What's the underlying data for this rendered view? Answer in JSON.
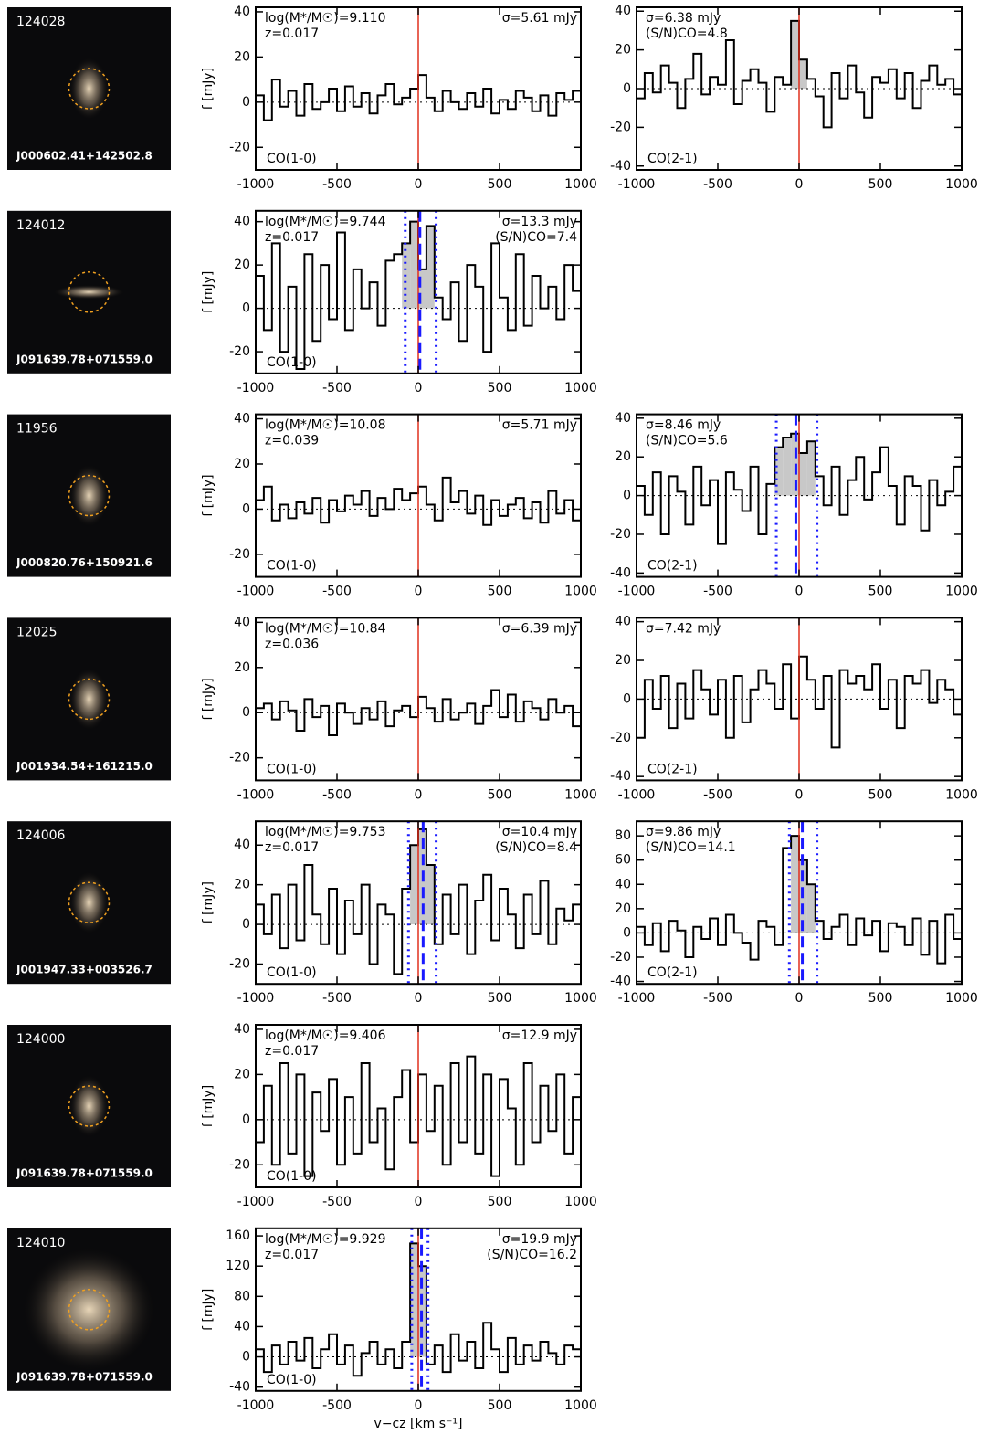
{
  "galaxies": [
    {
      "id": "124028",
      "name": "J000602.41+142502.8"
    },
    {
      "id": "124012",
      "name": "J091639.78+071559.0"
    },
    {
      "id": "11956",
      "name": "J000820.76+150921.6"
    },
    {
      "id": "12025",
      "name": "J001934.54+161215.0"
    },
    {
      "id": "124006",
      "name": "J001947.33+003526.7"
    },
    {
      "id": "124000",
      "name": "J091639.78+071559.0"
    },
    {
      "id": "124010",
      "name": "J091639.78+071559.0"
    }
  ],
  "colors": {
    "spectrum": "#000000",
    "systemic": "#e0301e",
    "fit": "#1a1aff",
    "shade": "#c8c8c8",
    "label": "#999999"
  },
  "chart_data": [
    {
      "type": "step",
      "ylabel": "f [mJy]",
      "left_text": [
        "log(M*/M☉)=9.110",
        "z=0.017"
      ],
      "right_text": [
        "σ=5.61 mJy"
      ],
      "line_label": "CO(1-0)",
      "xlim": [
        -1000,
        1000
      ],
      "xticks": [
        -1000,
        -500,
        0,
        500,
        1000
      ],
      "ylim": [
        -30,
        42
      ],
      "yticks": [
        -20,
        0,
        20,
        40
      ],
      "systemic": 0,
      "x": [
        -975,
        -925,
        -875,
        -825,
        -775,
        -725,
        -675,
        -625,
        -575,
        -525,
        -475,
        -425,
        -375,
        -325,
        -275,
        -225,
        -175,
        -125,
        -75,
        -25,
        25,
        75,
        125,
        175,
        225,
        275,
        325,
        375,
        425,
        475,
        525,
        575,
        625,
        675,
        725,
        775,
        825,
        875,
        925,
        975
      ],
      "values": [
        3,
        -8,
        10,
        -2,
        5,
        -6,
        8,
        -3,
        0,
        6,
        -4,
        7,
        -2,
        4,
        -5,
        3,
        8,
        -1,
        2,
        6,
        12,
        2,
        -4,
        5,
        0,
        -3,
        4,
        -2,
        6,
        -5,
        1,
        -3,
        5,
        2,
        -4,
        3,
        -6,
        4,
        1,
        5
      ]
    },
    {
      "type": "step",
      "left_text": [
        "σ=6.38 mJy",
        "(S/N)CO=4.8"
      ],
      "right_text": [],
      "line_label": "CO(2-1)",
      "xlim": [
        -1000,
        1000
      ],
      "xticks": [
        -1000,
        -500,
        0,
        500,
        1000
      ],
      "ylim": [
        -42,
        42
      ],
      "yticks": [
        -40,
        -20,
        0,
        20,
        40
      ],
      "systemic": 0,
      "shade": [
        -50,
        50
      ],
      "x": [
        -975,
        -925,
        -875,
        -825,
        -775,
        -725,
        -675,
        -625,
        -575,
        -525,
        -475,
        -425,
        -375,
        -325,
        -275,
        -225,
        -175,
        -125,
        -75,
        -25,
        25,
        75,
        125,
        175,
        225,
        275,
        325,
        375,
        425,
        475,
        525,
        575,
        625,
        675,
        725,
        775,
        825,
        875,
        925,
        975
      ],
      "values": [
        -5,
        8,
        -2,
        12,
        3,
        -10,
        5,
        18,
        -3,
        6,
        2,
        25,
        -8,
        4,
        10,
        3,
        -12,
        6,
        2,
        35,
        15,
        5,
        -4,
        -20,
        8,
        -5,
        12,
        -2,
        -15,
        6,
        3,
        10,
        -5,
        8,
        -10,
        4,
        12,
        2,
        5,
        -3
      ]
    },
    {
      "type": "step",
      "ylabel": "f [mJy]",
      "left_text": [
        "log(M*/M☉)=9.744",
        "z=0.017"
      ],
      "right_text": [
        "σ=13.3 mJy",
        "(S/N)CO=7.4"
      ],
      "line_label": "CO(1-0)",
      "xlim": [
        -1000,
        1000
      ],
      "xticks": [
        -1000,
        -500,
        0,
        500,
        1000
      ],
      "ylim": [
        -30,
        45
      ],
      "yticks": [
        -20,
        0,
        20,
        40
      ],
      "systemic": 0,
      "shade": [
        -80,
        110
      ],
      "line_center": 10,
      "line_edges": [
        -80,
        110
      ],
      "x": [
        -975,
        -925,
        -875,
        -825,
        -775,
        -725,
        -675,
        -625,
        -575,
        -525,
        -475,
        -425,
        -375,
        -325,
        -275,
        -225,
        -175,
        -125,
        -75,
        -25,
        25,
        75,
        125,
        175,
        225,
        275,
        325,
        375,
        425,
        475,
        525,
        575,
        625,
        675,
        725,
        775,
        825,
        875,
        925,
        975
      ],
      "values": [
        15,
        -10,
        30,
        -20,
        10,
        -28,
        25,
        -15,
        20,
        -5,
        35,
        -10,
        18,
        0,
        12,
        -8,
        22,
        25,
        30,
        40,
        18,
        38,
        5,
        -5,
        12,
        -15,
        20,
        10,
        -20,
        30,
        5,
        -10,
        25,
        -8,
        15,
        0,
        10,
        -5,
        20,
        8
      ]
    },
    {
      "type": "step",
      "ylabel": "f [mJy]",
      "left_text": [
        "log(M*/M☉)=10.08",
        "z=0.039"
      ],
      "right_text": [
        "σ=5.71 mJy"
      ],
      "line_label": "CO(1-0)",
      "xlim": [
        -1000,
        1000
      ],
      "xticks": [
        -1000,
        -500,
        0,
        500,
        1000
      ],
      "ylim": [
        -30,
        42
      ],
      "yticks": [
        -20,
        0,
        20,
        40
      ],
      "systemic": 0,
      "x": [
        -975,
        -925,
        -875,
        -825,
        -775,
        -725,
        -675,
        -625,
        -575,
        -525,
        -475,
        -425,
        -375,
        -325,
        -275,
        -225,
        -175,
        -125,
        -75,
        -25,
        25,
        75,
        125,
        175,
        225,
        275,
        325,
        375,
        425,
        475,
        525,
        575,
        625,
        675,
        725,
        775,
        825,
        875,
        925,
        975
      ],
      "values": [
        4,
        10,
        -5,
        2,
        -4,
        3,
        -2,
        5,
        -6,
        4,
        -1,
        6,
        2,
        8,
        -3,
        5,
        0,
        9,
        4,
        7,
        10,
        2,
        -5,
        14,
        3,
        8,
        -2,
        6,
        -7,
        4,
        -3,
        2,
        5,
        -4,
        3,
        -6,
        8,
        -2,
        4,
        -5
      ]
    },
    {
      "type": "step",
      "left_text": [
        "σ=8.46 mJy",
        "(S/N)CO=5.6"
      ],
      "right_text": [],
      "line_label": "CO(2-1)",
      "xlim": [
        -1000,
        1000
      ],
      "xticks": [
        -1000,
        -500,
        0,
        500,
        1000
      ],
      "ylim": [
        -42,
        42
      ],
      "yticks": [
        -40,
        -20,
        0,
        20,
        40
      ],
      "systemic": 0,
      "shade": [
        -140,
        110
      ],
      "line_center": -20,
      "line_edges": [
        -140,
        110
      ],
      "x": [
        -975,
        -925,
        -875,
        -825,
        -775,
        -725,
        -675,
        -625,
        -575,
        -525,
        -475,
        -425,
        -375,
        -325,
        -275,
        -225,
        -175,
        -125,
        -75,
        -25,
        25,
        75,
        125,
        175,
        225,
        275,
        325,
        375,
        425,
        475,
        525,
        575,
        625,
        675,
        725,
        775,
        825,
        875,
        925,
        975
      ],
      "values": [
        5,
        -10,
        12,
        -20,
        10,
        2,
        -15,
        15,
        -5,
        8,
        -25,
        12,
        3,
        -8,
        15,
        -20,
        6,
        25,
        30,
        32,
        22,
        28,
        10,
        -5,
        15,
        -10,
        8,
        20,
        -2,
        12,
        25,
        5,
        -15,
        10,
        5,
        -18,
        8,
        -5,
        2,
        15
      ]
    },
    {
      "type": "step",
      "ylabel": "f [mJy]",
      "left_text": [
        "log(M*/M☉)=10.84",
        "z=0.036"
      ],
      "right_text": [
        "σ=6.39 mJy"
      ],
      "line_label": "CO(1-0)",
      "xlim": [
        -1000,
        1000
      ],
      "xticks": [
        -1000,
        -500,
        0,
        500,
        1000
      ],
      "ylim": [
        -30,
        42
      ],
      "yticks": [
        -20,
        0,
        20,
        40
      ],
      "systemic": 0,
      "x": [
        -975,
        -925,
        -875,
        -825,
        -775,
        -725,
        -675,
        -625,
        -575,
        -525,
        -475,
        -425,
        -375,
        -325,
        -275,
        -225,
        -175,
        -125,
        -75,
        -25,
        25,
        75,
        125,
        175,
        225,
        275,
        325,
        375,
        425,
        475,
        525,
        575,
        625,
        675,
        725,
        775,
        825,
        875,
        925,
        975
      ],
      "values": [
        2,
        4,
        -3,
        5,
        1,
        -8,
        6,
        -2,
        3,
        -10,
        4,
        0,
        -5,
        2,
        -3,
        5,
        -6,
        1,
        3,
        -2,
        7,
        2,
        -4,
        6,
        -3,
        0,
        4,
        -5,
        3,
        10,
        -2,
        8,
        -4,
        5,
        2,
        -3,
        6,
        0,
        3,
        -6
      ]
    },
    {
      "type": "step",
      "left_text": [
        "σ=7.42 mJy"
      ],
      "right_text": [],
      "line_label": "CO(2-1)",
      "xlim": [
        -1000,
        1000
      ],
      "xticks": [
        -1000,
        -500,
        0,
        500,
        1000
      ],
      "ylim": [
        -42,
        42
      ],
      "yticks": [
        -40,
        -20,
        0,
        20,
        40
      ],
      "systemic": 0,
      "x": [
        -975,
        -925,
        -875,
        -825,
        -775,
        -725,
        -675,
        -625,
        -575,
        -525,
        -475,
        -425,
        -375,
        -325,
        -275,
        -225,
        -175,
        -125,
        -75,
        -25,
        25,
        75,
        125,
        175,
        225,
        275,
        325,
        375,
        425,
        475,
        525,
        575,
        625,
        675,
        725,
        775,
        825,
        875,
        925,
        975
      ],
      "values": [
        -20,
        10,
        -5,
        12,
        -15,
        8,
        -10,
        15,
        5,
        -8,
        10,
        -20,
        12,
        -12,
        5,
        15,
        8,
        -5,
        18,
        -10,
        22,
        10,
        -5,
        12,
        -25,
        15,
        8,
        12,
        5,
        18,
        -5,
        10,
        -15,
        12,
        8,
        15,
        -2,
        10,
        5,
        -8
      ]
    },
    {
      "type": "step",
      "ylabel": "f [mJy]",
      "left_text": [
        "log(M*/M☉)=9.753",
        "z=0.017"
      ],
      "right_text": [
        "σ=10.4 mJy",
        "(S/N)CO=8.4"
      ],
      "line_label": "CO(1-0)",
      "xlim": [
        -1000,
        1000
      ],
      "xticks": [
        -1000,
        -500,
        0,
        500,
        1000
      ],
      "ylim": [
        -30,
        52
      ],
      "yticks": [
        -20,
        0,
        20,
        40
      ],
      "systemic": 0,
      "shade": [
        -60,
        110
      ],
      "line_center": 30,
      "line_edges": [
        -60,
        110
      ],
      "x": [
        -975,
        -925,
        -875,
        -825,
        -775,
        -725,
        -675,
        -625,
        -575,
        -525,
        -475,
        -425,
        -375,
        -325,
        -275,
        -225,
        -175,
        -125,
        -75,
        -25,
        25,
        75,
        125,
        175,
        225,
        275,
        325,
        375,
        425,
        475,
        525,
        575,
        625,
        675,
        725,
        775,
        825,
        875,
        925,
        975
      ],
      "values": [
        10,
        -5,
        15,
        -12,
        20,
        -8,
        30,
        5,
        -10,
        18,
        -15,
        12,
        -5,
        20,
        -20,
        10,
        5,
        -25,
        18,
        40,
        48,
        30,
        -10,
        15,
        -5,
        20,
        -15,
        12,
        25,
        -8,
        18,
        5,
        -12,
        15,
        -5,
        22,
        -10,
        8,
        2,
        10
      ]
    },
    {
      "type": "step",
      "left_text": [
        "σ=9.86 mJy",
        "(S/N)CO=14.1"
      ],
      "right_text": [],
      "line_label": "CO(2-1)",
      "xlim": [
        -1000,
        1000
      ],
      "xticks": [
        -1000,
        -500,
        0,
        500,
        1000
      ],
      "ylim": [
        -42,
        92
      ],
      "yticks": [
        -40,
        -20,
        0,
        20,
        40,
        60,
        80
      ],
      "systemic": 0,
      "shade": [
        -60,
        110
      ],
      "line_center": 20,
      "line_edges": [
        -60,
        110
      ],
      "x": [
        -975,
        -925,
        -875,
        -825,
        -775,
        -725,
        -675,
        -625,
        -575,
        -525,
        -475,
        -425,
        -375,
        -325,
        -275,
        -225,
        -175,
        -125,
        -75,
        -25,
        25,
        75,
        125,
        175,
        225,
        275,
        325,
        375,
        425,
        475,
        525,
        575,
        625,
        675,
        725,
        775,
        825,
        875,
        925,
        975
      ],
      "values": [
        5,
        -10,
        8,
        -15,
        10,
        2,
        -20,
        5,
        -5,
        12,
        -10,
        15,
        0,
        -8,
        -22,
        10,
        5,
        -10,
        70,
        80,
        60,
        40,
        10,
        -5,
        5,
        15,
        -10,
        12,
        -2,
        10,
        -15,
        8,
        5,
        -10,
        12,
        -18,
        10,
        -25,
        15,
        -5
      ]
    },
    {
      "type": "step",
      "ylabel": "f [mJy]",
      "left_text": [
        "log(M*/M☉)=9.406",
        "z=0.017"
      ],
      "right_text": [
        "σ=12.9 mJy"
      ],
      "line_label": "CO(1-0)",
      "xlim": [
        -1000,
        1000
      ],
      "xticks": [
        -1000,
        -500,
        0,
        500,
        1000
      ],
      "ylim": [
        -30,
        42
      ],
      "yticks": [
        -20,
        0,
        20,
        40
      ],
      "systemic": 0,
      "x": [
        -975,
        -925,
        -875,
        -825,
        -775,
        -725,
        -675,
        -625,
        -575,
        -525,
        -475,
        -425,
        -375,
        -325,
        -275,
        -225,
        -175,
        -125,
        -75,
        -25,
        25,
        75,
        125,
        175,
        225,
        275,
        325,
        375,
        425,
        475,
        525,
        575,
        625,
        675,
        725,
        775,
        825,
        875,
        925,
        975
      ],
      "values": [
        -10,
        15,
        -20,
        25,
        -15,
        20,
        -25,
        12,
        -5,
        18,
        -20,
        10,
        -15,
        25,
        -10,
        5,
        -22,
        10,
        22,
        -10,
        20,
        -5,
        15,
        -20,
        25,
        -10,
        28,
        -15,
        20,
        -25,
        18,
        5,
        -20,
        25,
        -10,
        15,
        -5,
        20,
        -15,
        10
      ]
    },
    {
      "type": "step",
      "ylabel": "f [mJy]",
      "xlabel": "v−cz [km s⁻¹]",
      "left_text": [
        "log(M*/M☉)=9.929",
        "z=0.017"
      ],
      "right_text": [
        "σ=19.9 mJy",
        "(S/N)CO=16.2"
      ],
      "line_label": "CO(1-0)",
      "xlim": [
        -1000,
        1000
      ],
      "xticks": [
        -1000,
        -500,
        0,
        500,
        1000
      ],
      "ylim": [
        -45,
        170
      ],
      "yticks": [
        -40,
        0,
        40,
        80,
        120,
        160
      ],
      "systemic": 0,
      "shade": [
        -50,
        50
      ],
      "line_center": 20,
      "line_edges": [
        -40,
        60
      ],
      "x": [
        -975,
        -925,
        -875,
        -825,
        -775,
        -725,
        -675,
        -625,
        -575,
        -525,
        -475,
        -425,
        -375,
        -325,
        -275,
        -225,
        -175,
        -125,
        -75,
        -25,
        25,
        75,
        125,
        175,
        225,
        275,
        325,
        375,
        425,
        475,
        525,
        575,
        625,
        675,
        725,
        775,
        825,
        875,
        925,
        975
      ],
      "values": [
        10,
        -20,
        15,
        -10,
        20,
        -5,
        25,
        -15,
        10,
        30,
        -10,
        15,
        -25,
        5,
        20,
        -10,
        10,
        -15,
        20,
        150,
        120,
        -10,
        15,
        -20,
        30,
        -5,
        20,
        -15,
        45,
        10,
        -20,
        25,
        -10,
        15,
        -5,
        20,
        5,
        -10,
        15,
        10
      ]
    }
  ]
}
